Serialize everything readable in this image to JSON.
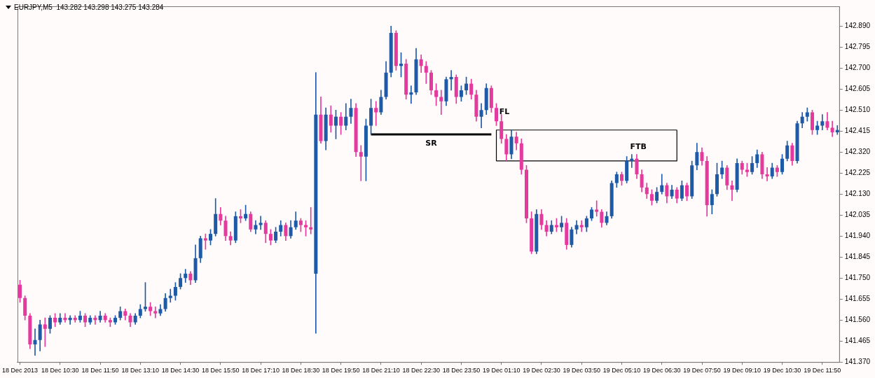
{
  "chart_data": {
    "type": "candlestick",
    "title": "EURJPY,M5  143.282 143.298 143.275 143.284",
    "categories": [
      "18 Dec 2013",
      null,
      null,
      null,
      null,
      null,
      null,
      null,
      "18 Dec 10:30",
      null,
      null,
      null,
      null,
      null,
      null,
      null,
      "18 Dec 11:50",
      null,
      null,
      null,
      null,
      null,
      null,
      null,
      "18 Dec 13:10",
      null,
      null,
      null,
      null,
      null,
      null,
      null,
      "18 Dec 14:30",
      null,
      null,
      null,
      null,
      null,
      null,
      null,
      "18 Dec 15:50",
      null,
      null,
      null,
      null,
      null,
      null,
      null,
      "18 Dec 17:10",
      null,
      null,
      null,
      null,
      null,
      null,
      null,
      "18 Dec 18:30",
      null,
      null,
      null,
      null,
      null,
      null,
      null,
      "18 Dec 19:50",
      null,
      null,
      null,
      null,
      null,
      null,
      null,
      "18 Dec 21:10",
      null,
      null,
      null,
      null,
      null,
      null,
      null,
      "18 Dec 22:30",
      null,
      null,
      null,
      null,
      null,
      null,
      null,
      "18 Dec 23:50",
      null,
      null,
      null,
      null,
      null,
      null,
      null,
      "19 Dec 01:10",
      null,
      null,
      null,
      null,
      null,
      null,
      null,
      "19 Dec 02:30",
      null,
      null,
      null,
      null,
      null,
      null,
      null,
      "19 Dec 03:50",
      null,
      null,
      null,
      null,
      null,
      null,
      null,
      "19 Dec 05:10",
      null,
      null,
      null,
      null,
      null,
      null,
      null,
      "19 Dec 06:30",
      null,
      null,
      null,
      null,
      null,
      null,
      null,
      "19 Dec 07:50",
      null,
      null,
      null,
      null,
      null,
      null,
      null,
      "19 Dec 09:10",
      null,
      null,
      null,
      null,
      null,
      null,
      null,
      "19 Dec 10:30",
      null,
      null,
      null,
      null,
      null,
      null,
      null,
      "19 Dec 11:50",
      null,
      null,
      null
    ],
    "ohlc": [
      [
        141.72,
        141.74,
        141.64,
        141.66
      ],
      [
        141.66,
        141.67,
        141.56,
        141.58
      ],
      [
        141.58,
        141.59,
        141.43,
        141.45
      ],
      [
        141.45,
        141.52,
        141.4,
        141.47
      ],
      [
        141.47,
        141.56,
        141.42,
        141.54
      ],
      [
        141.54,
        141.57,
        141.44,
        141.52
      ],
      [
        141.52,
        141.58,
        141.5,
        141.57
      ],
      [
        141.57,
        141.59,
        141.53,
        141.55
      ],
      [
        141.55,
        141.59,
        141.54,
        141.57
      ],
      [
        141.57,
        141.59,
        141.55,
        141.56
      ],
      [
        141.56,
        141.58,
        141.54,
        141.57
      ],
      [
        141.57,
        141.58,
        141.55,
        141.56
      ],
      [
        141.56,
        141.6,
        141.55,
        141.58
      ],
      [
        141.58,
        141.59,
        141.53,
        141.55
      ],
      [
        141.55,
        141.58,
        141.54,
        141.57
      ],
      [
        141.57,
        141.58,
        141.54,
        141.56
      ],
      [
        141.56,
        141.6,
        141.55,
        141.58
      ],
      [
        141.58,
        141.59,
        141.55,
        141.56
      ],
      [
        141.56,
        141.57,
        141.53,
        141.55
      ],
      [
        141.55,
        141.58,
        141.54,
        141.57
      ],
      [
        141.57,
        141.62,
        141.56,
        141.6
      ],
      [
        141.6,
        141.61,
        141.56,
        141.58
      ],
      [
        141.58,
        141.59,
        141.53,
        141.55
      ],
      [
        141.55,
        141.59,
        141.54,
        141.58
      ],
      [
        141.58,
        141.63,
        141.57,
        141.61
      ],
      [
        141.61,
        141.73,
        141.6,
        141.62
      ],
      [
        141.62,
        141.64,
        141.58,
        141.6
      ],
      [
        141.6,
        141.62,
        141.57,
        141.59
      ],
      [
        141.59,
        141.63,
        141.58,
        141.61
      ],
      [
        141.61,
        141.68,
        141.6,
        141.66
      ],
      [
        141.66,
        141.7,
        141.64,
        141.67
      ],
      [
        141.67,
        141.73,
        141.65,
        141.71
      ],
      [
        141.71,
        141.77,
        141.7,
        141.75
      ],
      [
        141.75,
        141.79,
        141.73,
        141.77
      ],
      [
        141.77,
        141.78,
        141.72,
        141.74
      ],
      [
        141.74,
        141.9,
        141.73,
        141.84
      ],
      [
        141.84,
        141.94,
        141.82,
        141.93
      ],
      [
        141.93,
        141.95,
        141.88,
        141.92
      ],
      [
        141.92,
        141.97,
        141.9,
        141.95
      ],
      [
        141.95,
        142.11,
        141.94,
        142.04
      ],
      [
        142.04,
        142.07,
        141.99,
        142.01
      ],
      [
        142.01,
        142.03,
        141.92,
        141.94
      ],
      [
        141.94,
        141.96,
        141.9,
        141.92
      ],
      [
        141.92,
        142.05,
        141.91,
        142.03
      ],
      [
        142.03,
        142.06,
        142.0,
        142.02
      ],
      [
        142.02,
        142.08,
        142.01,
        142.04
      ],
      [
        142.04,
        142.05,
        141.96,
        141.97
      ],
      [
        141.97,
        142.01,
        141.95,
        141.99
      ],
      [
        141.99,
        142.03,
        141.97,
        142.0
      ],
      [
        142.0,
        142.01,
        141.91,
        141.95
      ],
      [
        141.95,
        141.97,
        141.9,
        141.92
      ],
      [
        141.92,
        141.98,
        141.91,
        141.96
      ],
      [
        141.96,
        142.01,
        141.94,
        141.99
      ],
      [
        141.99,
        142.0,
        141.92,
        141.94
      ],
      [
        141.94,
        142.01,
        141.93,
        141.98
      ],
      [
        141.98,
        142.05,
        141.97,
        142.01
      ],
      [
        142.01,
        142.02,
        141.96,
        141.99
      ],
      [
        141.99,
        142.01,
        141.94,
        141.98
      ],
      [
        141.98,
        142.07,
        141.95,
        141.97
      ],
      [
        141.77,
        142.68,
        141.5,
        142.49
      ],
      [
        142.49,
        142.57,
        142.36,
        142.37
      ],
      [
        142.37,
        142.52,
        142.33,
        142.49
      ],
      [
        142.49,
        142.53,
        142.41,
        142.44
      ],
      [
        142.44,
        142.51,
        142.38,
        142.48
      ],
      [
        142.48,
        142.5,
        142.4,
        142.44
      ],
      [
        142.44,
        142.54,
        142.42,
        142.48
      ],
      [
        142.48,
        142.56,
        142.45,
        142.52
      ],
      [
        142.52,
        142.54,
        142.3,
        142.32
      ],
      [
        142.32,
        142.35,
        142.19,
        142.3
      ],
      [
        142.3,
        142.47,
        142.19,
        142.44
      ],
      [
        142.44,
        142.56,
        142.4,
        142.52
      ],
      [
        142.52,
        142.55,
        142.44,
        142.5
      ],
      [
        142.5,
        142.6,
        142.49,
        142.57
      ],
      [
        142.57,
        142.73,
        142.56,
        142.68
      ],
      [
        142.68,
        142.89,
        142.66,
        142.86
      ],
      [
        142.86,
        142.87,
        142.69,
        142.71
      ],
      [
        142.71,
        142.77,
        142.66,
        142.72
      ],
      [
        142.72,
        142.74,
        142.56,
        142.58
      ],
      [
        142.58,
        142.62,
        142.54,
        142.59
      ],
      [
        142.59,
        142.79,
        142.58,
        142.74
      ],
      [
        142.74,
        142.76,
        142.68,
        142.71
      ],
      [
        142.71,
        142.73,
        142.63,
        142.68
      ],
      [
        142.68,
        142.69,
        142.58,
        142.6
      ],
      [
        142.6,
        142.63,
        142.53,
        142.57
      ],
      [
        142.57,
        142.6,
        142.49,
        142.55
      ],
      [
        142.55,
        142.66,
        142.53,
        142.65
      ],
      [
        142.65,
        142.69,
        142.6,
        142.66
      ],
      [
        142.66,
        142.67,
        142.54,
        142.57
      ],
      [
        142.57,
        142.62,
        142.55,
        142.6
      ],
      [
        142.6,
        142.66,
        142.58,
        142.63
      ],
      [
        142.63,
        142.65,
        142.56,
        142.58
      ],
      [
        142.58,
        142.6,
        142.46,
        142.48
      ],
      [
        142.48,
        142.54,
        142.43,
        142.51
      ],
      [
        142.51,
        142.63,
        142.49,
        142.61
      ],
      [
        142.61,
        142.62,
        142.5,
        142.52
      ],
      [
        142.52,
        142.54,
        142.44,
        142.46
      ],
      [
        142.46,
        142.49,
        142.36,
        142.38
      ],
      [
        142.38,
        142.4,
        142.28,
        142.31
      ],
      [
        142.31,
        142.42,
        142.29,
        142.39
      ],
      [
        142.39,
        142.41,
        142.33,
        142.36
      ],
      [
        142.36,
        142.38,
        142.22,
        142.24
      ],
      [
        142.24,
        142.26,
        142.0,
        142.02
      ],
      [
        142.02,
        142.05,
        141.86,
        141.87
      ],
      [
        141.87,
        142.06,
        141.86,
        142.04
      ],
      [
        142.04,
        142.06,
        141.97,
        141.99
      ],
      [
        141.99,
        142.01,
        141.94,
        141.96
      ],
      [
        141.96,
        142.01,
        141.95,
        141.99
      ],
      [
        141.99,
        142.02,
        141.96,
        141.98
      ],
      [
        141.98,
        142.03,
        141.96,
        142.0
      ],
      [
        142.0,
        142.02,
        141.88,
        141.9
      ],
      [
        141.9,
        141.98,
        141.89,
        141.97
      ],
      [
        141.97,
        142.01,
        141.95,
        141.99
      ],
      [
        141.99,
        142.01,
        141.96,
        141.98
      ],
      [
        141.98,
        142.03,
        141.96,
        142.02
      ],
      [
        142.02,
        142.07,
        142.01,
        142.06
      ],
      [
        142.06,
        142.1,
        142.03,
        142.05
      ],
      [
        142.05,
        142.06,
        141.98,
        142.0
      ],
      [
        142.0,
        142.05,
        141.99,
        142.03
      ],
      [
        142.03,
        142.19,
        142.02,
        142.18
      ],
      [
        142.18,
        142.23,
        142.16,
        142.22
      ],
      [
        142.22,
        142.23,
        142.17,
        142.19
      ],
      [
        142.19,
        142.3,
        142.18,
        142.28
      ],
      [
        142.28,
        142.31,
        142.25,
        142.29
      ],
      [
        142.29,
        142.31,
        142.2,
        142.22
      ],
      [
        142.22,
        142.24,
        142.14,
        142.16
      ],
      [
        142.16,
        142.18,
        142.11,
        142.13
      ],
      [
        142.13,
        142.15,
        142.08,
        142.1
      ],
      [
        142.1,
        142.16,
        142.09,
        142.14
      ],
      [
        142.14,
        142.22,
        142.13,
        142.17
      ],
      [
        142.17,
        142.18,
        142.09,
        142.12
      ],
      [
        142.12,
        142.17,
        142.11,
        142.15
      ],
      [
        142.15,
        142.16,
        142.09,
        142.11
      ],
      [
        142.11,
        142.19,
        142.1,
        142.17
      ],
      [
        142.17,
        142.18,
        142.1,
        142.12
      ],
      [
        142.12,
        142.28,
        142.11,
        142.26
      ],
      [
        142.26,
        142.36,
        142.24,
        142.32
      ],
      [
        142.32,
        142.34,
        142.26,
        142.28
      ],
      [
        142.28,
        142.3,
        142.03,
        142.08
      ],
      [
        142.08,
        142.15,
        142.04,
        142.13
      ],
      [
        142.13,
        142.27,
        142.12,
        142.22
      ],
      [
        142.22,
        142.28,
        142.2,
        142.25
      ],
      [
        142.25,
        142.26,
        142.15,
        142.17
      ],
      [
        142.17,
        142.19,
        142.1,
        142.15
      ],
      [
        142.15,
        142.29,
        142.14,
        142.27
      ],
      [
        142.27,
        142.28,
        142.22,
        142.24
      ],
      [
        142.24,
        142.27,
        142.21,
        142.23
      ],
      [
        142.23,
        142.3,
        142.22,
        142.27
      ],
      [
        142.27,
        142.33,
        142.25,
        142.31
      ],
      [
        142.31,
        142.32,
        142.2,
        142.22
      ],
      [
        142.22,
        142.25,
        142.19,
        142.21
      ],
      [
        142.21,
        142.27,
        142.2,
        142.25
      ],
      [
        142.25,
        142.26,
        142.21,
        142.23
      ],
      [
        142.23,
        142.31,
        142.22,
        142.29
      ],
      [
        142.29,
        142.37,
        142.28,
        142.35
      ],
      [
        142.35,
        142.36,
        142.26,
        142.28
      ],
      [
        142.28,
        142.46,
        142.27,
        142.45
      ],
      [
        142.45,
        142.5,
        142.43,
        142.48
      ],
      [
        142.48,
        142.52,
        142.46,
        142.5
      ],
      [
        142.5,
        142.51,
        142.4,
        142.42
      ],
      [
        142.42,
        142.46,
        142.4,
        142.44
      ],
      [
        142.44,
        142.49,
        142.42,
        142.46
      ],
      [
        142.46,
        142.5,
        142.42,
        142.43
      ],
      [
        142.43,
        142.46,
        142.39,
        142.41
      ],
      [
        142.41,
        142.44,
        142.4,
        142.42
      ]
    ],
    "colors": [
      "#e4399d",
      "#e4399d",
      "#e4399d",
      "#1f5aa6",
      "#1f5aa6",
      "#e4399d",
      "#1f5aa6",
      "#e4399d",
      "#1f5aa6",
      "#e4399d",
      "#1f5aa6",
      "#e4399d",
      "#1f5aa6",
      "#e4399d",
      "#1f5aa6",
      "#e4399d",
      "#1f5aa6",
      "#e4399d",
      "#e4399d",
      "#1f5aa6",
      "#1f5aa6",
      "#e4399d",
      "#e4399d",
      "#1f5aa6",
      "#1f5aa6",
      "#1f5aa6",
      "#e4399d",
      "#e4399d",
      "#1f5aa6",
      "#1f5aa6",
      "#1f5aa6",
      "#1f5aa6",
      "#1f5aa6",
      "#1f5aa6",
      "#e4399d",
      "#1f5aa6",
      "#1f5aa6",
      "#e4399d",
      "#1f5aa6",
      "#1f5aa6",
      "#e4399d",
      "#e4399d",
      "#e4399d",
      "#1f5aa6",
      "#e4399d",
      "#1f5aa6",
      "#e4399d",
      "#1f5aa6",
      "#1f5aa6",
      "#e4399d",
      "#e4399d",
      "#1f5aa6",
      "#1f5aa6",
      "#e4399d",
      "#1f5aa6",
      "#1f5aa6",
      "#e4399d",
      "#e4399d",
      "#e4399d",
      "#1f5aa6",
      "#e4399d",
      "#1f5aa6",
      "#e4399d",
      "#1f5aa6",
      "#e4399d",
      "#1f5aa6",
      "#1f5aa6",
      "#e4399d",
      "#e4399d",
      "#1f5aa6",
      "#1f5aa6",
      "#e4399d",
      "#1f5aa6",
      "#1f5aa6",
      "#1f5aa6",
      "#e4399d",
      "#1f5aa6",
      "#e4399d",
      "#1f5aa6",
      "#1f5aa6",
      "#e4399d",
      "#e4399d",
      "#e4399d",
      "#e4399d",
      "#e4399d",
      "#1f5aa6",
      "#1f5aa6",
      "#e4399d",
      "#1f5aa6",
      "#1f5aa6",
      "#e4399d",
      "#e4399d",
      "#1f5aa6",
      "#1f5aa6",
      "#e4399d",
      "#e4399d",
      "#e4399d",
      "#e4399d",
      "#1f5aa6",
      "#e4399d",
      "#e4399d",
      "#e4399d",
      "#e4399d",
      "#1f5aa6",
      "#e4399d",
      "#e4399d",
      "#1f5aa6",
      "#e4399d",
      "#1f5aa6",
      "#e4399d",
      "#1f5aa6",
      "#1f5aa6",
      "#e4399d",
      "#1f5aa6",
      "#1f5aa6",
      "#e4399d",
      "#e4399d",
      "#1f5aa6",
      "#1f5aa6",
      "#1f5aa6",
      "#e4399d",
      "#1f5aa6",
      "#1f5aa6",
      "#e4399d",
      "#e4399d",
      "#e4399d",
      "#e4399d",
      "#1f5aa6",
      "#1f5aa6",
      "#e4399d",
      "#1f5aa6",
      "#e4399d",
      "#1f5aa6",
      "#e4399d",
      "#1f5aa6",
      "#1f5aa6",
      "#e4399d",
      "#e4399d",
      "#1f5aa6",
      "#1f5aa6",
      "#1f5aa6",
      "#e4399d",
      "#e4399d",
      "#1f5aa6",
      "#e4399d",
      "#e4399d",
      "#1f5aa6",
      "#1f5aa6",
      "#e4399d",
      "#e4399d",
      "#1f5aa6",
      "#e4399d",
      "#1f5aa6",
      "#1f5aa6",
      "#e4399d",
      "#1f5aa6",
      "#1f5aa6",
      "#1f5aa6",
      "#e4399d",
      "#1f5aa6",
      "#1f5aa6",
      "#e4399d",
      "#e4399d",
      "#1f5aa6"
    ],
    "series": [
      {
        "type": "line",
        "name": "SR",
        "color": "#000000",
        "values": [
          null,
          null,
          null,
          null,
          null,
          null,
          null,
          null,
          null,
          null,
          null,
          null,
          null,
          null,
          null,
          null,
          null,
          null,
          null,
          null,
          null,
          null,
          null,
          null,
          null,
          null,
          null,
          null,
          null,
          null,
          null,
          null,
          null,
          null,
          null,
          null,
          null,
          null,
          null,
          null,
          null,
          null,
          null,
          null,
          null,
          null,
          null,
          null,
          null,
          null,
          null,
          null,
          null,
          null,
          null,
          null,
          null,
          null,
          null,
          null,
          null,
          null,
          null,
          null,
          null,
          null,
          null,
          null,
          null,
          null,
          142.4,
          142.4,
          142.4,
          142.4,
          142.4,
          142.4,
          142.4,
          142.4,
          142.4,
          142.4,
          142.4,
          142.4,
          142.4,
          142.4,
          142.4,
          142.4,
          142.4,
          142.4,
          142.4,
          142.4,
          142.4,
          142.4,
          142.4,
          142.4,
          142.4,
          null,
          null,
          null,
          null,
          null,
          null,
          null,
          null,
          null,
          null,
          null,
          null,
          null,
          null,
          null,
          null,
          null,
          null,
          null,
          null,
          null,
          null,
          null,
          null,
          null,
          null,
          null,
          null,
          null,
          null,
          null,
          null,
          null,
          null,
          null,
          null,
          null,
          null,
          null,
          null,
          null,
          null,
          null,
          null,
          null,
          null,
          null,
          null,
          null,
          null,
          null,
          null,
          null,
          null,
          null,
          null,
          null,
          null,
          null,
          null,
          null,
          null,
          null,
          null,
          null,
          null,
          null,
          null,
          null
        ]
      },
      {
        "type": "step",
        "color": "#000000",
        "values": [
          null,
          null,
          null,
          null,
          null,
          null,
          null,
          null,
          null,
          null,
          null,
          null,
          null,
          null,
          null,
          null,
          null,
          null,
          null,
          null,
          null,
          null,
          null,
          null,
          null,
          null,
          null,
          null,
          null,
          null,
          null,
          null,
          null,
          null,
          null,
          null,
          null,
          null,
          null,
          null,
          null,
          null,
          null,
          null,
          null,
          null,
          null,
          null,
          null,
          null,
          null,
          null,
          null,
          null,
          null,
          null,
          null,
          null,
          null,
          null,
          null,
          null,
          null,
          null,
          null,
          null,
          null,
          null,
          null,
          null,
          null,
          null,
          null,
          null,
          null,
          null,
          null,
          null,
          null,
          null,
          null,
          null,
          null,
          null,
          null,
          null,
          null,
          null,
          null,
          null,
          null,
          null,
          null,
          null,
          null,
          142.28,
          142.42,
          142.42,
          142.42,
          142.42,
          142.42,
          142.42,
          142.42,
          142.42,
          142.42,
          142.42,
          142.42,
          142.42,
          142.42,
          142.42,
          142.42,
          142.42,
          142.42,
          142.42,
          142.42,
          142.42,
          142.42,
          142.42,
          142.42,
          142.42,
          142.42,
          142.42,
          142.42,
          142.42,
          142.42,
          142.42,
          142.42,
          142.42,
          142.42,
          142.42,
          142.42,
          142.42,
          null,
          null,
          null,
          null,
          null,
          null,
          null,
          null,
          null,
          null,
          null,
          null,
          null,
          null,
          null,
          null,
          null,
          null,
          null,
          null,
          null,
          null,
          null,
          null,
          null,
          null,
          null,
          null,
          null,
          null,
          null,
          null
        ]
      },
      {
        "type": "step",
        "color": "#000000",
        "values": [
          null,
          null,
          null,
          null,
          null,
          null,
          null,
          null,
          null,
          null,
          null,
          null,
          null,
          null,
          null,
          null,
          null,
          null,
          null,
          null,
          null,
          null,
          null,
          null,
          null,
          null,
          null,
          null,
          null,
          null,
          null,
          null,
          null,
          null,
          null,
          null,
          null,
          null,
          null,
          null,
          null,
          null,
          null,
          null,
          null,
          null,
          null,
          null,
          null,
          null,
          null,
          null,
          null,
          null,
          null,
          null,
          null,
          null,
          null,
          null,
          null,
          null,
          null,
          null,
          null,
          null,
          null,
          null,
          null,
          null,
          null,
          null,
          null,
          null,
          null,
          null,
          null,
          null,
          null,
          null,
          null,
          null,
          null,
          null,
          null,
          null,
          null,
          null,
          null,
          null,
          null,
          null,
          null,
          null,
          null,
          142.28,
          142.28,
          142.28,
          142.28,
          142.28,
          142.28,
          142.28,
          142.28,
          142.28,
          142.28,
          142.28,
          142.28,
          142.28,
          142.28,
          142.28,
          142.28,
          142.28,
          142.28,
          142.28,
          142.28,
          142.28,
          142.28,
          142.28,
          142.28,
          142.28,
          142.28,
          142.28,
          142.28,
          142.28,
          142.28,
          142.28,
          142.28,
          142.28,
          142.28,
          142.28,
          142.28,
          142.42,
          null,
          null,
          null,
          null,
          null,
          null,
          null,
          null,
          null,
          null,
          null,
          null,
          null,
          null,
          null,
          null,
          null,
          null,
          null,
          null,
          null,
          null,
          null,
          null,
          null,
          null,
          null,
          null,
          null,
          null,
          null,
          null
        ]
      }
    ],
    "annotations": [
      "FL",
      "FTB"
    ],
    "ylim": [
      141.37,
      142.98
    ],
    "yticks": [
      {
        "value": 141.37,
        "label": "141.370"
      },
      141.465,
      {
        "value": 141.56,
        "label": "141.560"
      },
      141.655,
      {
        "value": 141.75,
        "label": "141.750"
      },
      141.845,
      {
        "value": 141.94,
        "label": "141.940"
      },
      142.035,
      {
        "value": 142.13,
        "label": "142.130"
      },
      142.225,
      {
        "value": 142.32,
        "label": "142.320"
      },
      142.415,
      {
        "value": 142.51,
        "label": "142.510"
      },
      142.605,
      {
        "value": 142.7,
        "label": "142.700"
      },
      142.795,
      {
        "value": 142.89,
        "label": "142.890"
      }
    ]
  }
}
